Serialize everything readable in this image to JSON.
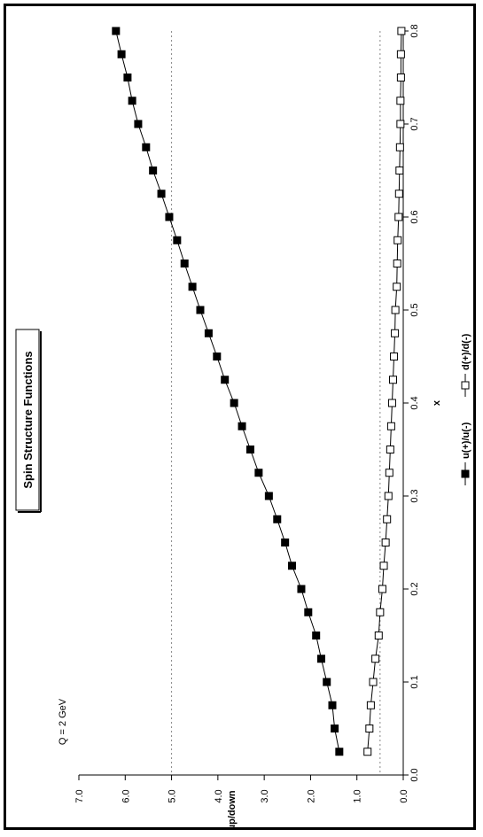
{
  "chart_data": {
    "type": "line",
    "title": "Spin Structure Functions",
    "annotation": "Q = 2 GeV",
    "xlabel": "x",
    "ylabel": "up/down",
    "xlim": [
      0.0,
      0.8
    ],
    "ylim": [
      0.0,
      7.0
    ],
    "x_ticks": [
      "0.0",
      "0.1",
      "0.2",
      "0.3",
      "0.4",
      "0.5",
      "0.6",
      "0.7",
      "0.8"
    ],
    "y_ticks": [
      "0.0",
      "1.0",
      "2.0",
      "3.0",
      "4.0",
      "5.0",
      "6.0",
      "7.0"
    ],
    "reference_lines_y": [
      0.5,
      5.0
    ],
    "grid": false,
    "legend_position": "right",
    "x": [
      0.025,
      0.05,
      0.075,
      0.1,
      0.125,
      0.15,
      0.175,
      0.2,
      0.225,
      0.25,
      0.275,
      0.3,
      0.325,
      0.35,
      0.375,
      0.4,
      0.425,
      0.45,
      0.475,
      0.5,
      0.525,
      0.55,
      0.575,
      0.6,
      0.625,
      0.65,
      0.675,
      0.7,
      0.725,
      0.75,
      0.775,
      0.8
    ],
    "series": [
      {
        "name": "u(+)/u(-)",
        "marker": "filled-square",
        "color": "#000000",
        "values": [
          1.38,
          1.48,
          1.53,
          1.65,
          1.77,
          1.88,
          2.05,
          2.2,
          2.4,
          2.55,
          2.72,
          2.9,
          3.12,
          3.3,
          3.48,
          3.65,
          3.85,
          4.02,
          4.2,
          4.38,
          4.55,
          4.72,
          4.88,
          5.05,
          5.22,
          5.4,
          5.55,
          5.72,
          5.85,
          5.95,
          6.08,
          6.2
        ]
      },
      {
        "name": "d(+)/d(-)",
        "marker": "open-square",
        "color": "#000000",
        "values": [
          0.77,
          0.73,
          0.7,
          0.65,
          0.6,
          0.53,
          0.5,
          0.45,
          0.42,
          0.38,
          0.35,
          0.32,
          0.3,
          0.28,
          0.26,
          0.24,
          0.22,
          0.2,
          0.18,
          0.17,
          0.14,
          0.13,
          0.12,
          0.1,
          0.09,
          0.08,
          0.07,
          0.06,
          0.06,
          0.05,
          0.05,
          0.04
        ]
      }
    ]
  }
}
